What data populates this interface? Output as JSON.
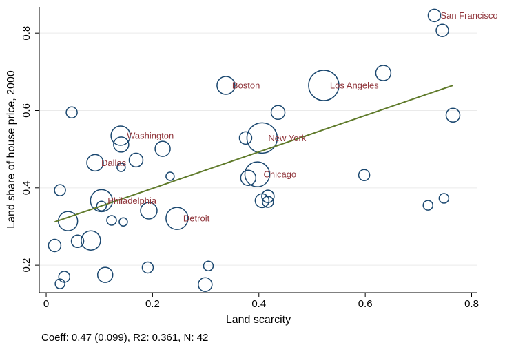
{
  "chart_data": {
    "type": "scatter",
    "x_label": "Land scarcity",
    "y_label": "Land share of house price, 2000",
    "note": "Coeff: 0.47 (0.099), R2: 0.361, N: 42",
    "marker_color": "#1a476f",
    "label_color": "#90353b",
    "grid": true,
    "xlim": [
      -0.013,
      0.811
    ],
    "ylim": [
      0.129,
      0.868
    ],
    "xticks": [
      0,
      0.2,
      0.4,
      0.6,
      0.8
    ],
    "yticks": [
      0.2,
      0.4,
      0.6,
      0.8
    ],
    "series": [
      {
        "x": [
          0.73,
          0.745,
          0.338,
          0.522,
          0.634,
          0.048,
          0.436,
          0.765,
          0.14,
          0.141,
          0.219,
          0.375,
          0.406,
          0.092,
          0.169,
          0.141,
          0.233,
          0.397,
          0.38,
          0.598,
          0.026,
          0.104,
          0.104,
          0.417,
          0.406,
          0.417,
          0.718,
          0.748,
          0.193,
          0.246,
          0.123,
          0.145,
          0.041,
          0.059,
          0.084,
          0.016,
          0.191,
          0.305,
          0.034,
          0.111,
          0.026,
          0.299
        ],
        "values": [
          0.846,
          0.807,
          0.665,
          0.665,
          0.697,
          0.595,
          0.595,
          0.588,
          0.535,
          0.512,
          0.501,
          0.529,
          0.529,
          0.465,
          0.472,
          0.453,
          0.43,
          0.435,
          0.426,
          0.433,
          0.394,
          0.367,
          0.353,
          0.378,
          0.367,
          0.364,
          0.355,
          0.373,
          0.341,
          0.321,
          0.316,
          0.312,
          0.314,
          0.262,
          0.264,
          0.251,
          0.194,
          0.198,
          0.17,
          0.175,
          0.152,
          0.15
        ],
        "sizes": [
          9,
          9,
          13,
          22,
          11,
          8,
          10,
          10,
          14,
          11,
          11,
          9,
          22,
          12,
          10,
          6,
          6,
          18,
          11,
          8,
          8,
          16,
          7,
          9,
          10,
          8,
          7,
          7,
          12,
          16,
          7,
          6,
          14,
          9,
          14,
          9,
          8,
          7,
          8,
          11,
          7,
          10
        ],
        "point_labels": [
          "San Francisco",
          null,
          "Boston",
          "Los Angeles",
          null,
          null,
          null,
          null,
          "Washington",
          null,
          null,
          null,
          "New York",
          "Dallas",
          null,
          null,
          null,
          "Chicago",
          null,
          null,
          null,
          "Philadelphia",
          null,
          null,
          null,
          null,
          null,
          null,
          null,
          "Detroit",
          null,
          null,
          null,
          null,
          null,
          null,
          null,
          null,
          null,
          null,
          null,
          null
        ]
      }
    ],
    "fit_line": {
      "color": "#5f7a2a",
      "x": [
        0.016,
        0.765
      ],
      "y": [
        0.312,
        0.665
      ]
    }
  }
}
